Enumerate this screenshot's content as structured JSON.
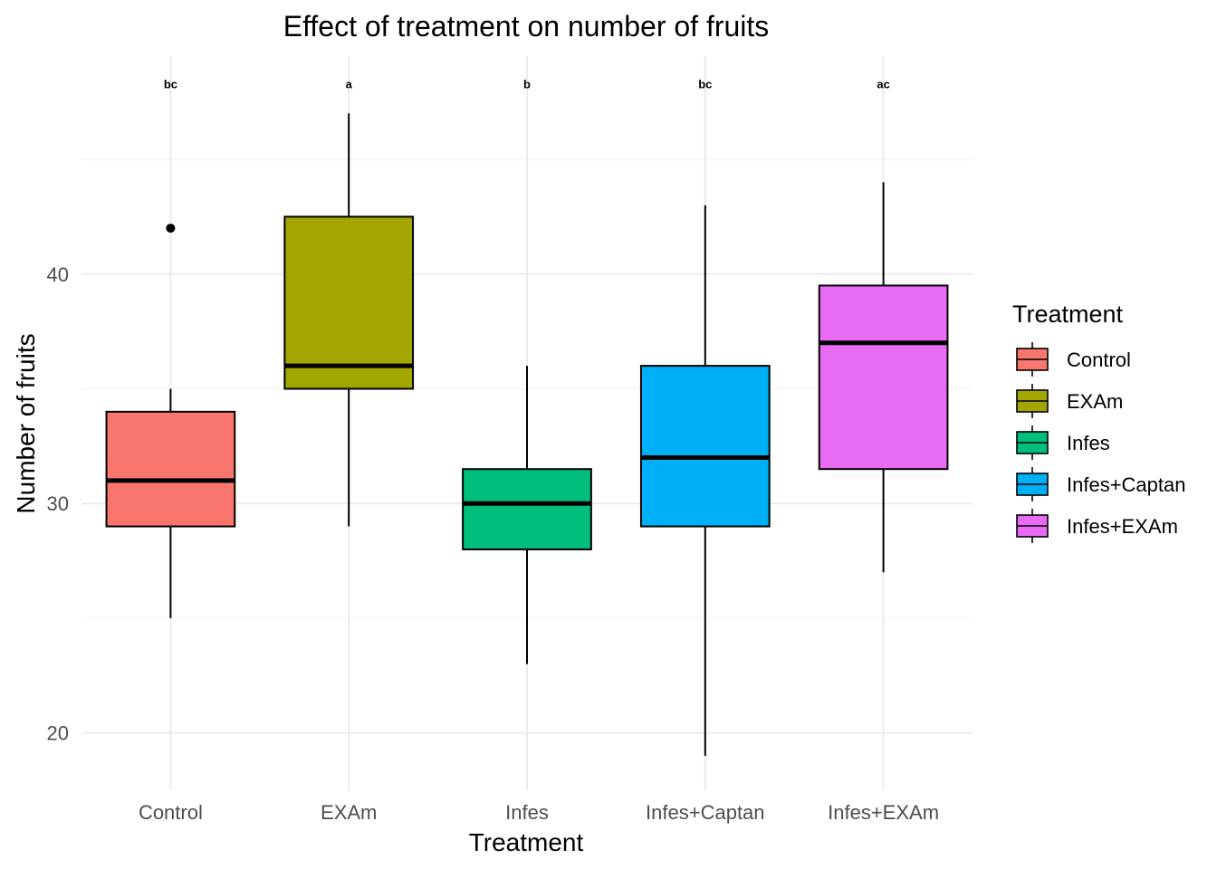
{
  "chart_data": {
    "type": "box",
    "title": "Effect of treatment on number of fruits",
    "xlabel": "Treatment",
    "ylabel": "Number of fruits",
    "ylim": [
      17.5,
      49.5
    ],
    "y_ticks": [
      20,
      30,
      40
    ],
    "y_minor_ticks": [
      25,
      35,
      45
    ],
    "grid": true,
    "legend": {
      "title": "Treatment",
      "position": "right"
    },
    "categories": [
      "Control",
      "EXAm",
      "Infes",
      "Infes+Captan",
      "Infes+EXAm"
    ],
    "boxes": [
      {
        "category": "Control",
        "min": 25,
        "q1": 29,
        "median": 31,
        "q3": 34,
        "max": 35,
        "outliers": [
          42
        ],
        "letter": "bc",
        "color": "#F8766D"
      },
      {
        "category": "EXAm",
        "min": 29,
        "q1": 35,
        "median": 36,
        "q3": 42.5,
        "max": 47,
        "outliers": [],
        "letter": "a",
        "color": "#A3A500"
      },
      {
        "category": "Infes",
        "min": 23,
        "q1": 28,
        "median": 30,
        "q3": 31.5,
        "max": 36,
        "outliers": [],
        "letter": "b",
        "color": "#00BF7D"
      },
      {
        "category": "Infes+Captan",
        "min": 19,
        "q1": 29,
        "median": 32,
        "q3": 36,
        "max": 43,
        "outliers": [],
        "letter": "bc",
        "color": "#00B0F6"
      },
      {
        "category": "Infes+EXAm",
        "min": 27,
        "q1": 31.5,
        "median": 37,
        "q3": 39.5,
        "max": 44,
        "outliers": [],
        "letter": "ac",
        "color": "#E76BF3"
      }
    ],
    "letter_y": 48.3
  }
}
